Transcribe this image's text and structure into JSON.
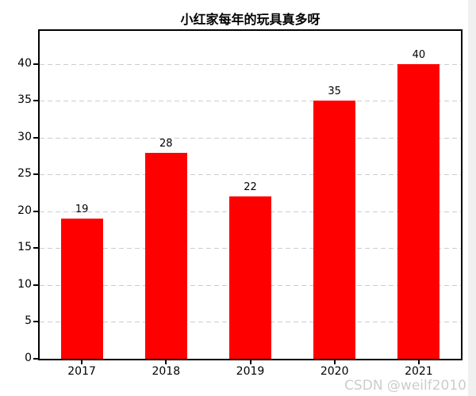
{
  "figure": {
    "title": "小红家每年的玩具真多呀",
    "watermark": "CSDN @weilf2010"
  },
  "chart_data": {
    "type": "bar",
    "title": "小红家每年的玩具真多呀",
    "categories": [
      "2017",
      "2018",
      "2019",
      "2020",
      "2021"
    ],
    "values": [
      19,
      28,
      22,
      35,
      40
    ],
    "value_labels": [
      "19",
      "28",
      "22",
      "35",
      "40"
    ],
    "xlabel": "",
    "ylabel": "",
    "ylim": [
      0,
      44.5
    ],
    "yticks": [
      0,
      5,
      10,
      15,
      20,
      25,
      30,
      35,
      40
    ],
    "bar_color": "#ff0000",
    "bar_width_fraction": 0.5,
    "grid": "horizontal dashed",
    "grid_color": "#cccccc",
    "axis_color": "#000000",
    "background_color": "#ffffff",
    "watermark": "CSDN @weilf2010",
    "watermark_color": "#cccccc",
    "legend": "none",
    "value_labels_shown": true
  }
}
